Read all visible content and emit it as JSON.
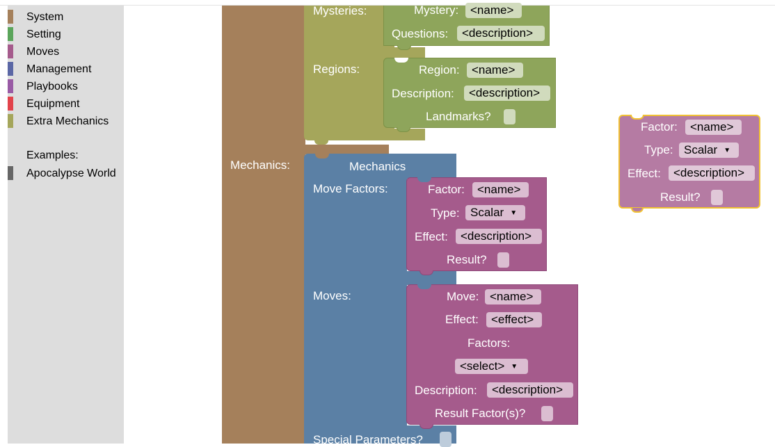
{
  "colors": {
    "system": "#a5805b",
    "setting": "#5ba55b",
    "moves": "#a55b8c",
    "management": "#5b67a5",
    "playbooks": "#995ba5",
    "equipment": "#e2434b",
    "extra_mechanics": "#a5a65b",
    "example": "#666666",
    "block_brown": "#a5805b",
    "block_olive": "#a5a65b",
    "block_green": "#8ea55b",
    "block_blue": "#5b80a5",
    "block_purple": "#a55b8c",
    "selection_highlight": "#f1c232"
  },
  "toolbox": {
    "categories": [
      {
        "label": "System",
        "color": "#a5805b"
      },
      {
        "label": "Setting",
        "color": "#5ba55b"
      },
      {
        "label": "Moves",
        "color": "#a55b8c"
      },
      {
        "label": "Management",
        "color": "#5b67a5"
      },
      {
        "label": "Playbooks",
        "color": "#995ba5"
      },
      {
        "label": "Equipment",
        "color": "#e2434b"
      },
      {
        "label": "Extra Mechanics",
        "color": "#a5a65b"
      }
    ],
    "examples_heading": "Examples:",
    "examples": [
      {
        "label": "Apocalypse World",
        "color": "#666666"
      }
    ]
  },
  "workspace": {
    "system_block": {
      "mechanics_label": "Mechanics:"
    },
    "setting_block": {
      "mysteries_label": "Mysteries:",
      "regions_label": "Regions:",
      "mystery": {
        "label": "Mystery:",
        "value": "<name>",
        "questions_label": "Questions:",
        "questions_value": "<description>"
      },
      "region": {
        "label": "Region:",
        "value": "<name>",
        "description_label": "Description:",
        "description_value": "<description>",
        "landmarks_label": "Landmarks?"
      }
    },
    "mechanics_block": {
      "title": "Mechanics",
      "move_factors_label": "Move Factors:",
      "moves_label": "Moves:",
      "special_parameters_label": "Special Parameters?",
      "factor": {
        "factor_label": "Factor:",
        "factor_value": "<name>",
        "type_label": "Type:",
        "type_value": "Scalar",
        "effect_label": "Effect:",
        "effect_value": "<description>",
        "result_label": "Result?"
      },
      "move": {
        "move_label": "Move:",
        "move_value": "<name>",
        "effect_label": "Effect:",
        "effect_value": "<effect>",
        "factors_label": "Factors:",
        "factors_select": "<select>",
        "description_label": "Description:",
        "description_value": "<description>",
        "result_label": "Result Factor(s)?"
      }
    },
    "floating_factor_block": {
      "factor_label": "Factor:",
      "factor_value": "<name>",
      "type_label": "Type:",
      "type_value": "Scalar",
      "effect_label": "Effect:",
      "effect_value": "<description>",
      "result_label": "Result?"
    }
  }
}
